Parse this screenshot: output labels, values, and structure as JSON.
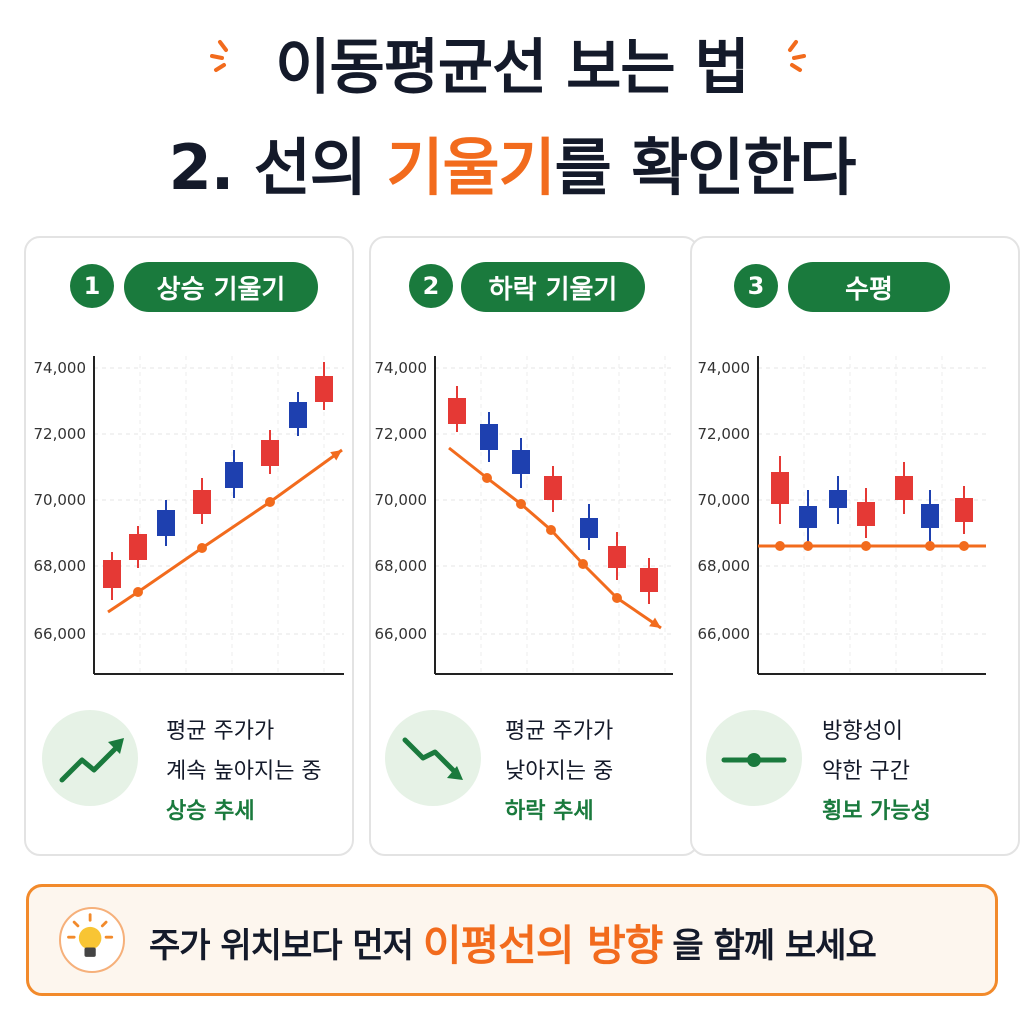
{
  "header": {
    "title_line1": "이동평균선 보는 법",
    "title_line2_pre": "2. 선의 ",
    "title_line2_highlight": "기울기",
    "title_line2_post": "를 확인한다"
  },
  "colors": {
    "accent_orange": "#f26b1d",
    "brand_green": "#1a7a3d",
    "candle_up": "#e53935",
    "candle_down": "#1e40af"
  },
  "y_tick_labels": [
    "74,000",
    "72,000",
    "70,000",
    "68,000",
    "66,000"
  ],
  "cards": [
    {
      "number": "1",
      "label": "상승 기울기",
      "desc_line1": "평균 주가가",
      "desc_line2": "계속 높아지는 중",
      "tag": "상승 추세",
      "icon": "trend-up-arrow-icon"
    },
    {
      "number": "2",
      "label": "하락 기울기",
      "desc_line1": "평균 주가가",
      "desc_line2": "낮아지는 중",
      "tag": "하락 추세",
      "icon": "trend-down-arrow-icon"
    },
    {
      "number": "3",
      "label": "수평",
      "desc_line1": "방향성이",
      "desc_line2": "약한 구간",
      "tag": "횡보 가능성",
      "icon": "flat-line-icon"
    }
  ],
  "banner": {
    "text_pre": "주가 위치보다 먼저",
    "text_highlight": "이평선의 방향",
    "text_post": "을 함께 보세요",
    "icon": "lightbulb-icon"
  }
}
